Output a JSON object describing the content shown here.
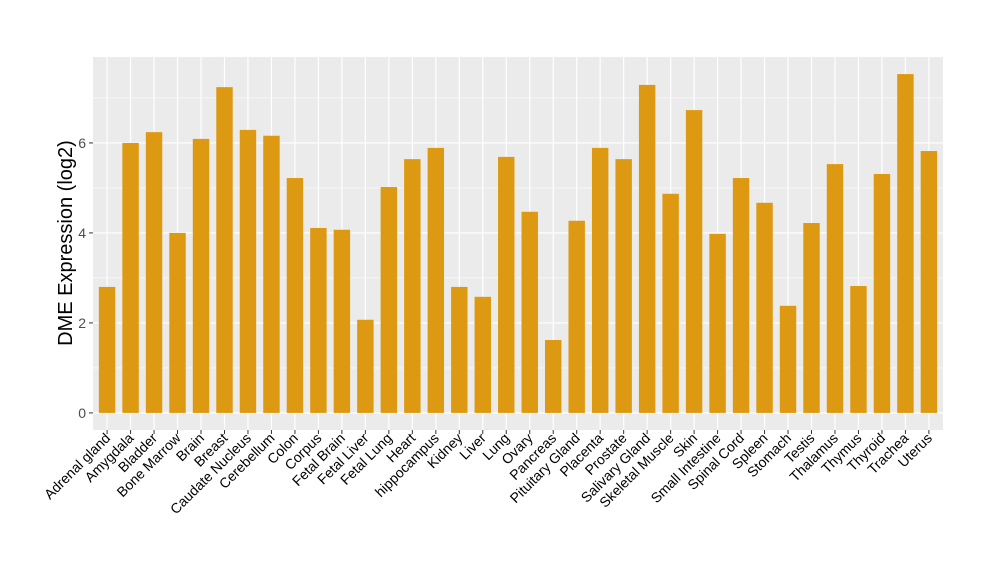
{
  "chart_data": {
    "type": "bar",
    "title": "",
    "xlabel": "",
    "ylabel": "DME Expression (log2)",
    "ylim": [
      -0.38,
      7.91
    ],
    "yticks": [
      0,
      2,
      4,
      6
    ],
    "grid": true,
    "bar_color": "#DE9912",
    "panel_color": "#EBEBEB",
    "categories": [
      "Adrenal gland",
      "Amygdala",
      "Bladder",
      "Bone Marrow",
      "Brain",
      "Breast",
      "Caudate Nucleus",
      "Cerebellum",
      "Colon",
      "Corpus",
      "Fetal Brain",
      "Fetal Liver",
      "Fetal Lung",
      "Heart",
      "hippocampus",
      "Kidney",
      "Liver",
      "Lung",
      "Ovary",
      "Pancreas",
      "Pituitary Gland",
      "Placenta",
      "Prostate",
      "Salivary Gland",
      "Skeletal Muscle",
      "Skin",
      "Small Intestine",
      "Spinal Cord",
      "Spleen",
      "Stomach",
      "Testis",
      "Thalamus",
      "Thymus",
      "Thyroid",
      "Trachea",
      "Uterus"
    ],
    "values": [
      2.8,
      6.0,
      6.24,
      4.0,
      6.09,
      7.24,
      6.29,
      6.16,
      5.22,
      4.11,
      4.07,
      2.07,
      5.02,
      5.64,
      5.89,
      2.8,
      2.58,
      5.69,
      4.47,
      1.62,
      4.27,
      5.89,
      5.64,
      7.29,
      4.87,
      6.73,
      3.98,
      5.22,
      4.67,
      2.38,
      4.22,
      5.53,
      2.82,
      5.31,
      7.53,
      5.82
    ]
  }
}
